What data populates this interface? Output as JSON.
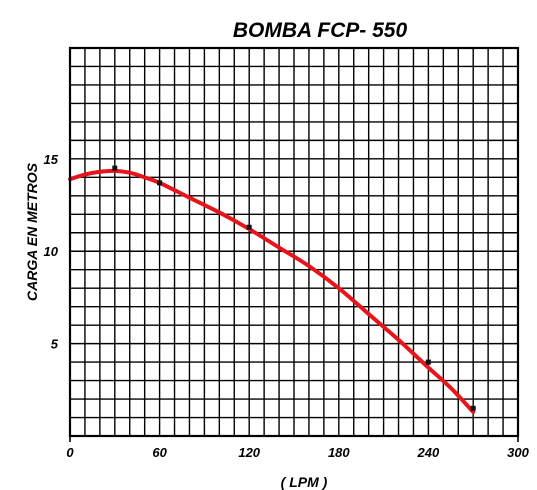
{
  "chart_data": {
    "type": "line",
    "title": "BOMBA  FCP- 550",
    "xlabel": "( LPM )",
    "ylabel": "CARGA EN METROS",
    "xlim": [
      0,
      300
    ],
    "ylim": [
      0,
      21
    ],
    "x_ticks": [
      0,
      60,
      120,
      180,
      240,
      300
    ],
    "y_ticks": [
      5,
      10,
      15
    ],
    "x_tick_labels": [
      "0",
      "60",
      "120",
      "180",
      "240",
      "300"
    ],
    "y_tick_labels": [
      "5",
      "10",
      "15"
    ],
    "grid": true,
    "grid_x_step": 10,
    "grid_y_step": 1,
    "series": [
      {
        "color": "#e8141c",
        "x": [
          0,
          10,
          20,
          30,
          40,
          50,
          60,
          80,
          100,
          120,
          140,
          160,
          180,
          200,
          220,
          240,
          255,
          270
        ],
        "values": [
          13.9,
          14.15,
          14.3,
          14.35,
          14.25,
          14.0,
          13.7,
          12.9,
          12.1,
          11.2,
          10.2,
          9.2,
          8.0,
          6.6,
          5.2,
          3.7,
          2.6,
          1.3
        ]
      }
    ],
    "points": {
      "x": [
        30,
        60,
        120,
        240,
        270
      ],
      "y": [
        14.5,
        13.7,
        11.3,
        4.0,
        1.5
      ]
    }
  }
}
